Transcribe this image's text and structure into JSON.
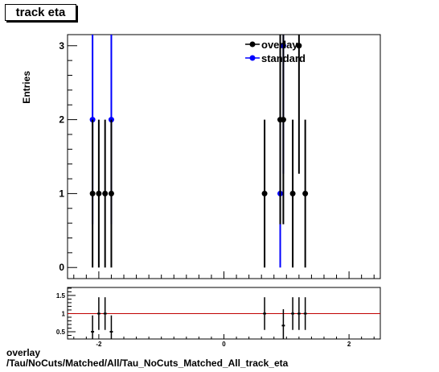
{
  "title": "track eta",
  "caption_line1": "overlay",
  "caption_line2": "/Tau/NoCuts/Matched/All/Tau_NoCuts_Matched_All_track_eta",
  "colors": {
    "overlay": "#000000",
    "standard": "#0000ff",
    "ratio_line": "#c00000"
  },
  "chart_data": [
    {
      "type": "scatter",
      "panel": "main",
      "ylabel": "Entries",
      "xlim": [
        -2.5,
        2.5
      ],
      "ylim": [
        -0.15,
        3.15
      ],
      "y_ticks": [
        0,
        1,
        2,
        3
      ],
      "legend": {
        "position": "top-right",
        "entries": [
          "overlay",
          "standard"
        ]
      },
      "series": [
        {
          "name": "overlay",
          "x": [
            -2.1,
            -2.0,
            -1.9,
            -1.8,
            0.65,
            0.9,
            0.95,
            1.1,
            1.2,
            1.3
          ],
          "y": [
            1,
            1,
            1,
            1,
            1,
            2,
            2,
            1,
            3,
            1
          ]
        },
        {
          "name": "standard",
          "x": [
            -2.1,
            -1.8,
            0.9,
            0.95
          ],
          "y": [
            2,
            2,
            1,
            3
          ]
        }
      ]
    },
    {
      "type": "scatter",
      "panel": "ratio",
      "xlim": [
        -2.5,
        2.5
      ],
      "ylim": [
        0.3,
        1.72
      ],
      "x_ticks": [
        -2,
        0,
        2
      ],
      "y_ticks": [
        0.5,
        1,
        1.5
      ],
      "reference_line": 1,
      "points": [
        {
          "x": -2.1,
          "y": 0.5
        },
        {
          "x": -2.0,
          "y": 1.0
        },
        {
          "x": -1.9,
          "y": 1.0
        },
        {
          "x": -1.8,
          "y": 0.5
        },
        {
          "x": 0.65,
          "y": 1.0
        },
        {
          "x": 0.95,
          "y": 0.67
        },
        {
          "x": 1.1,
          "y": 1.0
        },
        {
          "x": 1.2,
          "y": 1.0
        },
        {
          "x": 1.3,
          "y": 1.0
        }
      ]
    }
  ]
}
